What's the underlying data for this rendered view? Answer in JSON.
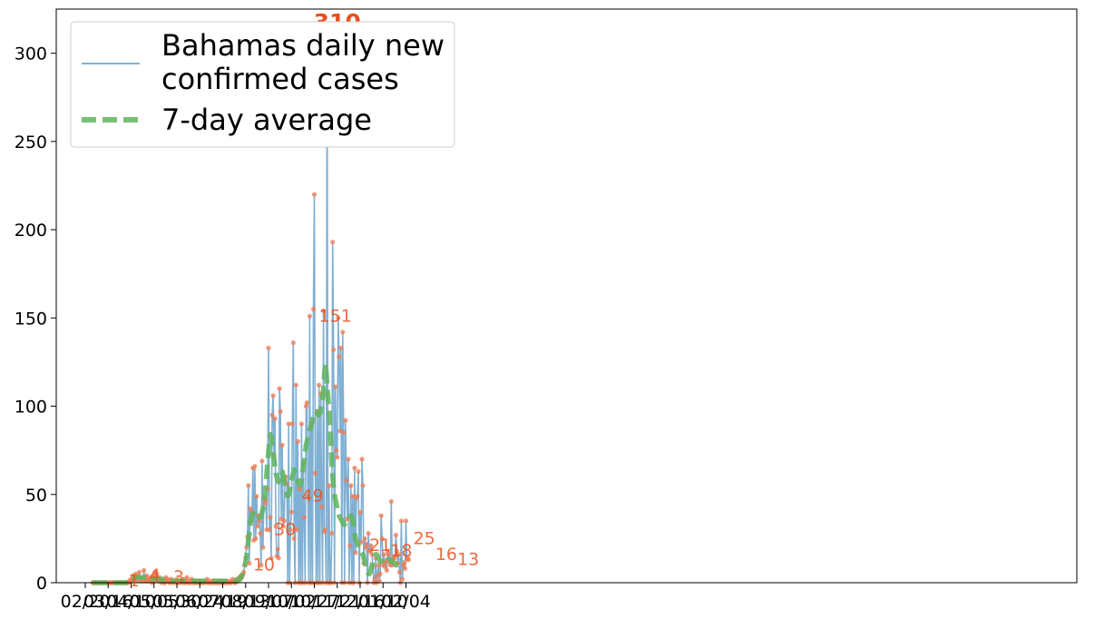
{
  "chart_data": {
    "type": "line",
    "title": "",
    "xlabel": "",
    "ylabel": "",
    "ylim": [
      0,
      325
    ],
    "yticks": [
      0,
      50,
      100,
      150,
      200,
      250,
      300
    ],
    "xticks": [
      "02/20",
      "03/16",
      "04/10",
      "05/05",
      "05/30",
      "06/24",
      "07/19",
      "08/13",
      "09/07",
      "10/02",
      "10/27",
      "11/21",
      "12/16",
      "01/10",
      "02/04"
    ],
    "grid": false,
    "legend_position": "top-left",
    "colors": {
      "daily_line": "#7fb0d4",
      "daily_markers": "#f07b52",
      "average_line": "#5fb55f",
      "annotations": "#e8501e"
    },
    "series": [
      {
        "name": "Bahamas daily new confirmed cases",
        "style": "thin-line-with-dots",
        "start_day": 8,
        "values": [
          0,
          0,
          0,
          0,
          0,
          0,
          0,
          0,
          0,
          0,
          0,
          0,
          0,
          0,
          0,
          0,
          0,
          0,
          0,
          0,
          0,
          0,
          0,
          0,
          0,
          0,
          0,
          0,
          0,
          0,
          0,
          0,
          0,
          0,
          0,
          0,
          0,
          0,
          0,
          0,
          1,
          1,
          2,
          1,
          3,
          4,
          2,
          5,
          1,
          4,
          3,
          6,
          1,
          3,
          2,
          1,
          7,
          1,
          2,
          4,
          1,
          1,
          3,
          2,
          1,
          0,
          4,
          1,
          6,
          3,
          5,
          1,
          2,
          3,
          1,
          0,
          1,
          2,
          0,
          0,
          3,
          1,
          2,
          1,
          0,
          1,
          2,
          0,
          1,
          1,
          0,
          1,
          2,
          0,
          0,
          1,
          1,
          0,
          1,
          2,
          0,
          0,
          1,
          3,
          0,
          0,
          1,
          0,
          2,
          1,
          0,
          0,
          1,
          0,
          1,
          0,
          1,
          0,
          0,
          1,
          0,
          0,
          1,
          0,
          1,
          2,
          0,
          0,
          1,
          0,
          0,
          1,
          1,
          0,
          0,
          1,
          0,
          0,
          1,
          0,
          0,
          1,
          0,
          0,
          0,
          1,
          1,
          0,
          0,
          1,
          0,
          0,
          1,
          2,
          1,
          0,
          0,
          1,
          2,
          1,
          3,
          2,
          4,
          3,
          5,
          6,
          10,
          14,
          20,
          26,
          55,
          11,
          42,
          35,
          40,
          65,
          24,
          66,
          25,
          49,
          32,
          38,
          35,
          28,
          10,
          69,
          20,
          48,
          45,
          47,
          30,
          53,
          133,
          30,
          37,
          14,
          95,
          106,
          72,
          93,
          32,
          15,
          19,
          14,
          110,
          97,
          36,
          78,
          32,
          35,
          58,
          60,
          56,
          0,
          90,
          0,
          30,
          40,
          90,
          136,
          25,
          0,
          112,
          30,
          80,
          0,
          53,
          0,
          90,
          0,
          68,
          37,
          0,
          100,
          102,
          49,
          0,
          151,
          0,
          90,
          0,
          155,
          220,
          62,
          0,
          97,
          0,
          112,
          0,
          107,
          43,
          0,
          154,
          29,
          30,
          0,
          310,
          0,
          55,
          0,
          0,
          28,
          193,
          132,
          0,
          111,
          75,
          71,
          150,
          128,
          86,
          133,
          0,
          142,
          85,
          0,
          92,
          58,
          36,
          70,
          0,
          21,
          55,
          0,
          49,
          0,
          65,
          17,
          48,
          49,
          63,
          0,
          40,
          23,
          70,
          55,
          11,
          25,
          20,
          22,
          0,
          28,
          18,
          18,
          21,
          16,
          9,
          0,
          2,
          14,
          0,
          4,
          10,
          1,
          5,
          38,
          25,
          10,
          16,
          9,
          12,
          7,
          18,
          16,
          12,
          10,
          46,
          10,
          13,
          14,
          15,
          27,
          18,
          11,
          16,
          6,
          0,
          35,
          2,
          10,
          11,
          8,
          35,
          13,
          14,
          13
        ]
      },
      {
        "name": "7-day average",
        "style": "thick-dashed",
        "start_day": 8,
        "values": [
          0,
          0,
          0,
          0,
          0,
          0,
          0,
          0,
          0,
          0,
          0,
          0,
          0,
          0,
          0,
          0,
          0,
          0,
          0,
          0,
          0,
          0,
          0,
          0,
          0,
          0,
          0,
          0,
          0,
          0,
          0,
          0,
          0,
          0,
          0,
          0,
          0,
          0,
          0,
          0,
          1,
          1,
          1,
          2,
          2,
          2,
          3,
          3,
          3,
          3,
          3,
          3,
          3,
          3,
          3,
          3,
          3,
          3,
          3,
          2,
          2,
          2,
          2,
          2,
          2,
          2,
          2,
          2,
          2,
          2,
          2,
          2,
          2,
          2,
          2,
          2,
          2,
          1,
          1,
          1,
          1,
          1,
          1,
          1,
          1,
          1,
          1,
          1,
          1,
          1,
          1,
          1,
          1,
          1,
          1,
          1,
          1,
          1,
          1,
          1,
          1,
          1,
          1,
          1,
          1,
          1,
          1,
          1,
          1,
          1,
          1,
          1,
          1,
          1,
          1,
          1,
          1,
          1,
          1,
          1,
          1,
          1,
          1,
          1,
          1,
          1,
          1,
          1,
          1,
          1,
          1,
          1,
          1,
          1,
          1,
          1,
          1,
          1,
          1,
          1,
          1,
          1,
          1,
          1,
          1,
          1,
          1,
          1,
          1,
          1,
          1,
          1,
          1,
          1,
          1,
          1,
          1,
          1,
          2,
          2,
          2,
          2,
          3,
          4,
          5,
          7,
          9,
          12,
          15,
          19,
          24,
          28,
          33,
          36,
          38,
          39,
          39,
          38,
          37,
          37,
          38,
          38,
          37,
          37,
          38,
          40,
          42,
          45,
          50,
          56,
          62,
          68,
          74,
          80,
          84,
          82,
          78,
          74,
          70,
          66,
          62,
          60,
          58,
          57,
          58,
          60,
          62,
          63,
          61,
          58,
          55,
          52,
          50,
          49,
          50,
          52,
          54,
          57,
          60,
          62,
          64,
          63,
          62,
          60,
          58,
          56,
          55,
          56,
          58,
          62,
          66,
          70,
          74,
          78,
          80,
          82,
          84,
          86,
          88,
          90,
          92,
          94,
          96,
          97,
          97,
          96,
          95,
          95,
          96,
          98,
          100,
          104,
          110,
          118,
          124,
          120,
          112,
          105,
          98,
          90,
          80,
          68,
          60,
          55,
          50,
          47,
          45,
          42,
          40,
          38,
          37,
          36,
          35,
          34,
          33,
          33,
          34,
          34,
          35,
          35,
          36,
          37,
          38,
          37,
          35,
          32,
          28,
          25,
          23,
          22,
          21,
          20,
          19,
          18,
          17,
          16,
          14,
          12,
          10,
          8,
          6,
          5,
          5,
          6,
          8,
          10,
          12,
          14,
          15,
          16,
          16,
          15,
          14,
          13,
          12,
          12,
          12,
          11,
          11,
          11,
          12,
          12,
          13,
          13,
          13,
          13,
          12,
          12,
          12,
          11,
          11,
          10,
          10,
          10,
          10,
          10,
          11,
          12,
          13
        ]
      }
    ],
    "annotations": [
      {
        "day": 47,
        "label": "1",
        "value": 1,
        "emphasis": false
      },
      {
        "day": 70,
        "label": "4",
        "value": 4,
        "emphasis": false
      },
      {
        "day": 96,
        "label": "3",
        "value": 3,
        "emphasis": false
      },
      {
        "day": 183,
        "label": "10",
        "value": 10,
        "emphasis": false
      },
      {
        "day": 206,
        "label": "30",
        "value": 30,
        "emphasis": false
      },
      {
        "day": 236,
        "label": "49",
        "value": 49,
        "emphasis": false
      },
      {
        "day": 255,
        "label": "151",
        "value": 151,
        "emphasis": false
      },
      {
        "day": 275,
        "label": "310",
        "value": 310,
        "emphasis": true
      },
      {
        "day": 310,
        "label": "21",
        "value": 21,
        "emphasis": false
      },
      {
        "day": 333,
        "label": "18",
        "value": 18,
        "emphasis": false
      },
      {
        "day": 358,
        "label": "25",
        "value": 25,
        "emphasis": false
      },
      {
        "day": 382,
        "label": "16",
        "value": 16,
        "emphasis": false
      },
      {
        "day": 406,
        "label": "13",
        "value": 13,
        "emphasis": false
      }
    ]
  }
}
